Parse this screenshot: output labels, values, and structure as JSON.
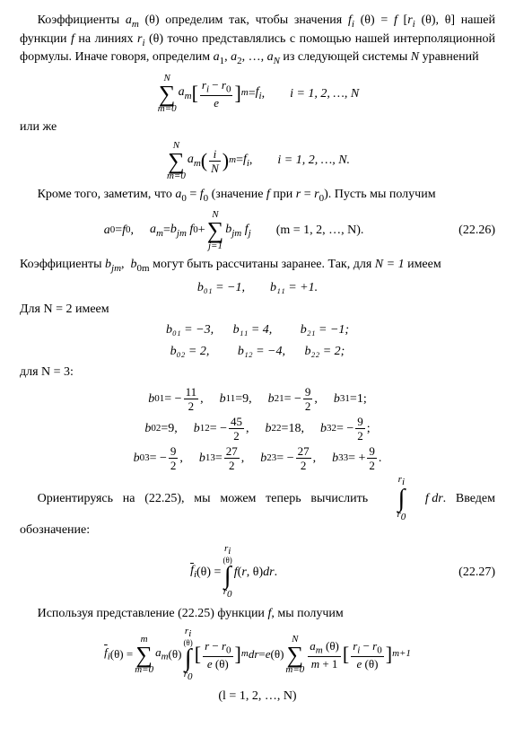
{
  "p1_a": "Коэффициенты ",
  "p1_am": "a",
  "p1_b": " (θ) определим так, чтобы значения ",
  "p1_c": "нашей функции ",
  "p1_d": " на линиях ",
  "p1_e": " (θ) точно представлялись с помощью нашей интерполяционной формулы. Иначе говоря, определим ",
  "p1_f": ", …, ",
  "p1_g": " из следующей системы ",
  "p1_h": " уравнений",
  "f_eq": "f",
  "f_i": "f",
  "r_i": "r",
  "r0": "r",
  "e": "e",
  "i_range": "i = 1, 2, …, N",
  "i_range_dot": "i = 1, 2, …, N.",
  "m_range": "(m = 1, 2, …, N).",
  "l_range": "(l = 1, 2, …, N)",
  "i_over_N": "i",
  "N": "N",
  "or": "или же",
  "p2_a": "Кроме того, заметим, что ",
  "a0f0": "a",
  "p2_b": " (значение ",
  "p2_c": " при ",
  "p2_d": "). Пусть мы получим",
  "eq_num1": "(22.26)",
  "p3_a": "Коэффициенты ",
  "p3_b": " могут быть рассчитаны заранее. Так, для ",
  "p3_c": " имеем",
  "N1": "N = 1",
  "N2": "Для N = 2 имеем",
  "N3": "для N = 3:",
  "n1_b01": "b₀₁ = −1,",
  "n1_b11": "b₁₁ = +1.",
  "n2_b01": "b₀₁ = −3,",
  "n2_b11": "b₁₁ = 4,",
  "n2_b21": "b₂₁ = −1;",
  "n2_b02": "b₀₂ = 2,",
  "n2_b12": "b₁₂ = −4,",
  "n2_b22": "b₂₂ = 2;",
  "p4_a": "Ориентируясь на (22.25), мы можем теперь вычислить ",
  "p4_b": ". Введем обозначение:",
  "eq_num2": "(22.27)",
  "p5_a": "Используя представление (22.25) функции ",
  "p5_b": ", мы получим",
  "fdr": "f dr",
  "val_11_2": "11",
  "val_9_2": "9",
  "val_45_2": "45",
  "val_27_2": "27",
  "val_2": "2",
  "val_9": "9",
  "val_18": "18",
  "val_1": "1"
}
